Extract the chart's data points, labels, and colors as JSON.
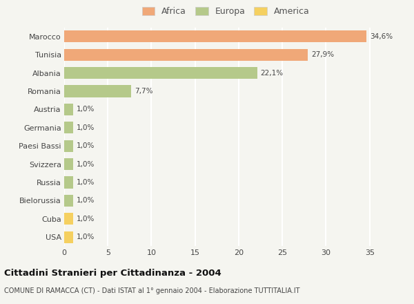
{
  "categories": [
    "Marocco",
    "Tunisia",
    "Albania",
    "Romania",
    "Austria",
    "Germania",
    "Paesi Bassi",
    "Svizzera",
    "Russia",
    "Bielorussia",
    "Cuba",
    "USA"
  ],
  "values": [
    34.6,
    27.9,
    22.1,
    7.7,
    1.0,
    1.0,
    1.0,
    1.0,
    1.0,
    1.0,
    1.0,
    1.0
  ],
  "labels": [
    "34,6%",
    "27,9%",
    "22,1%",
    "7,7%",
    "1,0%",
    "1,0%",
    "1,0%",
    "1,0%",
    "1,0%",
    "1,0%",
    "1,0%",
    "1,0%"
  ],
  "colors": [
    "#f0a878",
    "#f0a878",
    "#b5c98a",
    "#b5c98a",
    "#b5c98a",
    "#b5c98a",
    "#b5c98a",
    "#b5c98a",
    "#b5c98a",
    "#b5c98a",
    "#f5d060",
    "#f5d060"
  ],
  "legend_labels": [
    "Africa",
    "Europa",
    "America"
  ],
  "legend_colors": [
    "#f0a878",
    "#b5c98a",
    "#f5d060"
  ],
  "xlim": [
    0,
    37
  ],
  "xticks": [
    0,
    5,
    10,
    15,
    20,
    25,
    30,
    35
  ],
  "title": "Cittadini Stranieri per Cittadinanza - 2004",
  "subtitle": "COMUNE DI RAMACCA (CT) - Dati ISTAT al 1° gennaio 2004 - Elaborazione TUTTITALIA.IT",
  "bg_color": "#f5f5f0",
  "grid_color": "#ffffff",
  "bar_height": 0.65
}
